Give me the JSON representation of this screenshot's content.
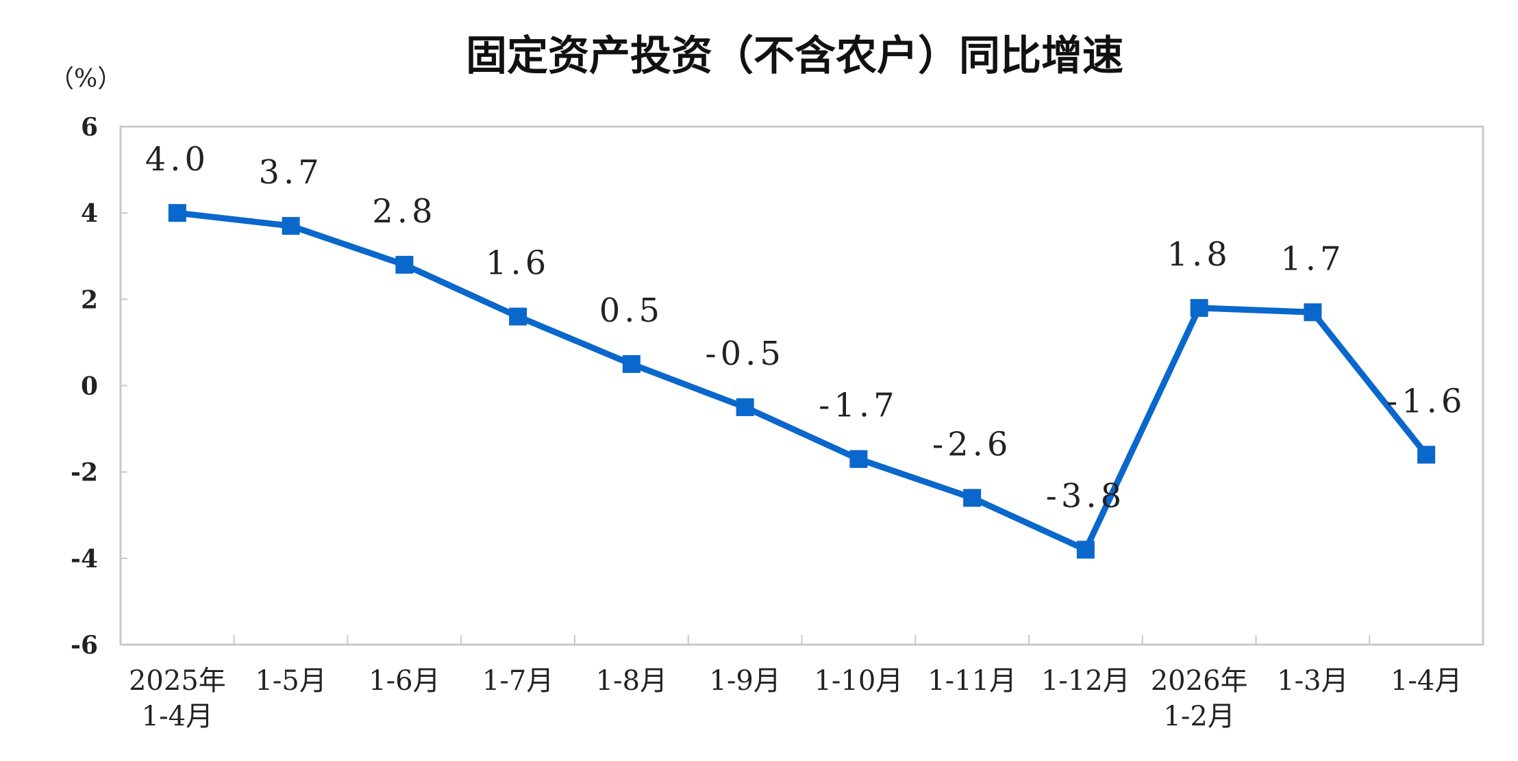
{
  "chart_data": {
    "type": "line",
    "title": "固定资产投资（不含农户）同比增速",
    "ylabel": "（%）",
    "xlabel": "",
    "ylim": [
      -6,
      6
    ],
    "yticks": [
      "6",
      "4",
      "2",
      "0",
      "-2",
      "-4",
      "-6"
    ],
    "categories": [
      [
        "2025年",
        "1-4月"
      ],
      [
        "1-5月"
      ],
      [
        "1-6月"
      ],
      [
        "1-7月"
      ],
      [
        "1-8月"
      ],
      [
        "1-9月"
      ],
      [
        "1-10月"
      ],
      [
        "1-11月"
      ],
      [
        "1-12月"
      ],
      [
        "2026年",
        "1-2月"
      ],
      [
        "1-3月"
      ],
      [
        "1-4月"
      ]
    ],
    "values": [
      4.0,
      3.7,
      2.8,
      1.6,
      0.5,
      -0.5,
      -1.7,
      -2.6,
      -3.8,
      1.8,
      1.7,
      -1.6
    ],
    "value_labels": [
      "4.0",
      "3.7",
      "2.8",
      "1.6",
      "0.5",
      "-0.5",
      "-1.7",
      "-2.6",
      "-3.8",
      "1.8",
      "1.7",
      "-1.6"
    ],
    "grid": false,
    "line_color": "#0a67cc",
    "marker": "square"
  }
}
